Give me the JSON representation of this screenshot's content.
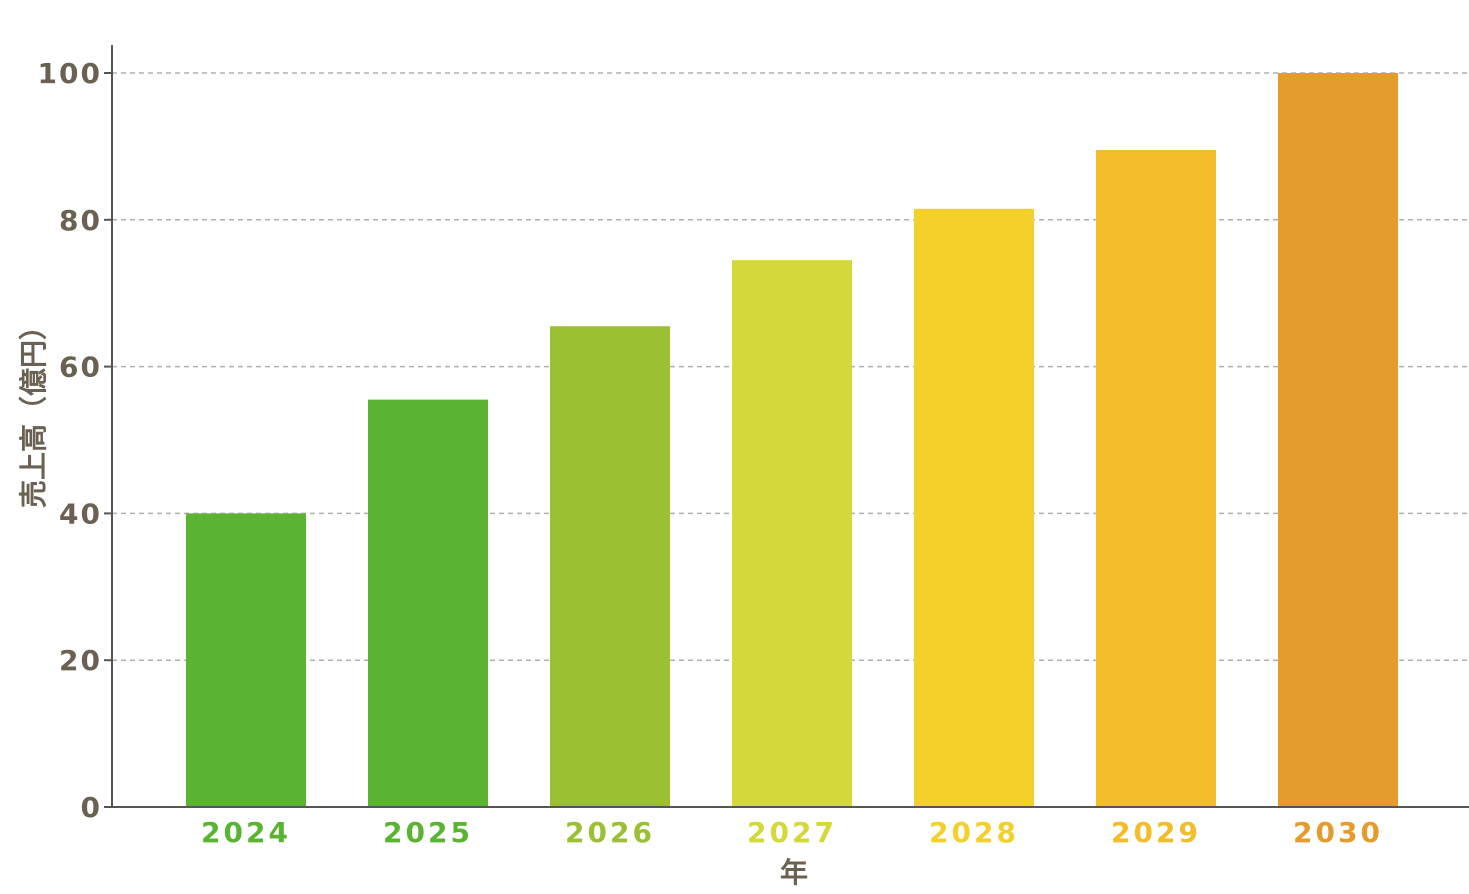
{
  "chart_data": {
    "type": "bar",
    "categories": [
      "2024",
      "2025",
      "2026",
      "2027",
      "2028",
      "2029",
      "2030"
    ],
    "values": [
      40,
      55.5,
      65.5,
      74.5,
      81.5,
      89.5,
      100
    ],
    "bar_colors": [
      "#5bb431",
      "#5bb431",
      "#9bc033",
      "#d4d83a",
      "#f3d12a",
      "#f2bd28",
      "#e59c2c"
    ],
    "title": "",
    "xlabel": "年",
    "ylabel": "売上高（億円）",
    "ylim": [
      0,
      100
    ],
    "yticks": [
      0,
      20,
      40,
      60,
      80,
      100
    ],
    "grid": true,
    "grid_style": "dashed",
    "legend": false
  },
  "colors": {
    "axis": "#555555",
    "axis_text": "#6b6152",
    "grid": "#b0b0b0"
  }
}
